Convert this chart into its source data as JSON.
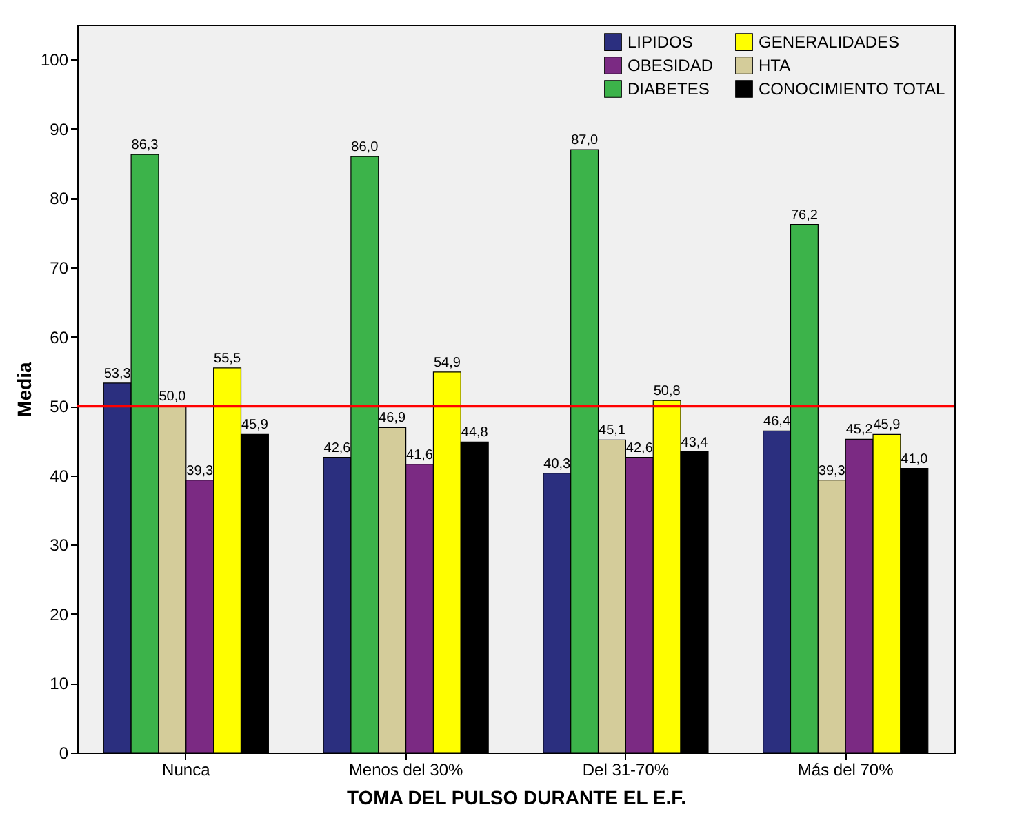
{
  "chart_data": {
    "type": "bar",
    "xlabel": "TOMA DEL PULSO DURANTE EL E.F.",
    "ylabel": "Media",
    "categories": [
      "Nunca",
      "Menos del 30%",
      "Del 31-70%",
      "Más del 70%"
    ],
    "series": [
      {
        "name": "LIPIDOS",
        "color": "#2b2f7f",
        "values": [
          53.3,
          42.6,
          40.3,
          46.4
        ],
        "value_labels": [
          "53,3",
          "42,6",
          "40,3",
          "46,4"
        ]
      },
      {
        "name": "DIABETES",
        "color": "#3cb34a",
        "values": [
          86.3,
          86.0,
          87.0,
          76.2
        ],
        "value_labels": [
          "86,3",
          "86,0",
          "87,0",
          "76,2"
        ]
      },
      {
        "name": "HTA",
        "color": "#d4cc9a",
        "values": [
          50.0,
          46.9,
          45.1,
          39.3
        ],
        "value_labels": [
          "50,0",
          "46,9",
          "45,1",
          "39,3"
        ]
      },
      {
        "name": "OBESIDAD",
        "color": "#7b2a83",
        "values": [
          39.3,
          41.6,
          42.6,
          45.2
        ],
        "value_labels": [
          "39,3",
          "41,6",
          "42,6",
          "45,2"
        ]
      },
      {
        "name": "GENERALIDADES",
        "color": "#ffff00",
        "values": [
          55.5,
          54.9,
          50.8,
          45.9
        ],
        "value_labels": [
          "55,5",
          "54,9",
          "50,8",
          "45,9"
        ]
      },
      {
        "name": "CONOCIMIENTO TOTAL",
        "color": "#000000",
        "values": [
          45.9,
          44.8,
          43.4,
          41.0
        ],
        "value_labels": [
          "45,9",
          "44,8",
          "43,4",
          "41,0"
        ]
      }
    ],
    "ylim": [
      0,
      105
    ],
    "yticks": [
      0,
      10,
      20,
      30,
      40,
      50,
      60,
      70,
      80,
      90,
      100
    ],
    "ref_lines": [
      {
        "axis": "y",
        "value": 50,
        "color": "#ff0000"
      }
    ],
    "grid": false,
    "legend": "top right"
  }
}
